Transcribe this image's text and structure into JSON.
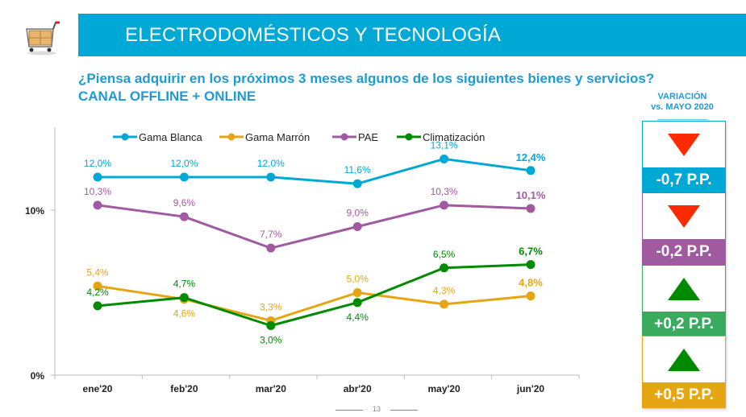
{
  "header": {
    "icon": "shopping-cart-icon",
    "title": "ELECTRODOMÉSTICOS Y TECNOLOGÍA",
    "color": "#00a8d6"
  },
  "question": "¿Piensa adquirir en los próximos 3 meses algunos de los siguientes bienes y servicios?",
  "channel": "CANAL OFFLINE + ONLINE",
  "variation": {
    "title_line1": "VARIACIÓN",
    "title_line2": "vs. MAYO 2020",
    "cards": [
      {
        "series": "Gama Blanca",
        "value": "-0,7 P.P.",
        "direction": "down",
        "color": "#00a8d6",
        "arrow_color": "#ff2a00",
        "border": "#00a8d6"
      },
      {
        "series": "PAE",
        "value": "-0,2 P.P.",
        "direction": "down",
        "color": "#a05aa0",
        "arrow_color": "#ff2a00",
        "border": "#a05aa0"
      },
      {
        "series": "Climatización",
        "value": "+0,2 P.P.",
        "direction": "up",
        "color": "#3aaa5f",
        "arrow_color": "#008a00",
        "border": "#3aaa5f"
      },
      {
        "series": "Gama Marrón",
        "value": "+0,5 P.P.",
        "direction": "up",
        "color": "#e6a512",
        "arrow_color": "#008a00",
        "border": "#e6a512"
      }
    ]
  },
  "page_number": "13",
  "chart_data": {
    "type": "line",
    "title": "",
    "xlabel": "",
    "ylabel": "",
    "categories": [
      "ene'20",
      "feb'20",
      "mar'20",
      "abr'20",
      "may'20",
      "jun'20"
    ],
    "ylim": [
      0,
      14.9
    ],
    "yticks": [
      0,
      10
    ],
    "ytick_labels": [
      "0%",
      "10%"
    ],
    "grid": false,
    "legend_position": "top",
    "series": [
      {
        "name": "Gama Blanca",
        "color": "#00a8d6",
        "values": [
          12.0,
          12.0,
          12.0,
          11.6,
          13.1,
          12.4
        ],
        "labels": [
          "12,0%",
          "12,0%",
          "12,0%",
          "11,6%",
          "13,1%",
          "12,4%"
        ],
        "label_pos": [
          "above",
          "above",
          "above",
          "above",
          "above",
          "above"
        ]
      },
      {
        "name": "Gama Marrón",
        "color": "#e6a512",
        "values": [
          5.4,
          4.6,
          3.3,
          5.0,
          4.3,
          4.8
        ],
        "labels": [
          "5,4%",
          "4,6%",
          "3,3%",
          "5,0%",
          "4,3%",
          "4,8%"
        ],
        "label_pos": [
          "above",
          "below",
          "above",
          "above",
          "above",
          "above"
        ]
      },
      {
        "name": "PAE",
        "color": "#a05aa0",
        "values": [
          10.3,
          9.6,
          7.7,
          9.0,
          10.3,
          10.1
        ],
        "labels": [
          "10,3%",
          "9,6%",
          "7,7%",
          "9,0%",
          "10,3%",
          "10,1%"
        ],
        "label_pos": [
          "above",
          "above",
          "above",
          "above",
          "above",
          "above"
        ]
      },
      {
        "name": "Climatización",
        "color": "#008a00",
        "values": [
          4.2,
          4.7,
          3.0,
          4.4,
          6.5,
          6.7
        ],
        "labels": [
          "4,2%",
          "4,7%",
          "3,0%",
          "4,4%",
          "6,5%",
          "6,7%"
        ],
        "label_pos": [
          "above",
          "above",
          "below",
          "below",
          "above",
          "above"
        ]
      }
    ]
  }
}
